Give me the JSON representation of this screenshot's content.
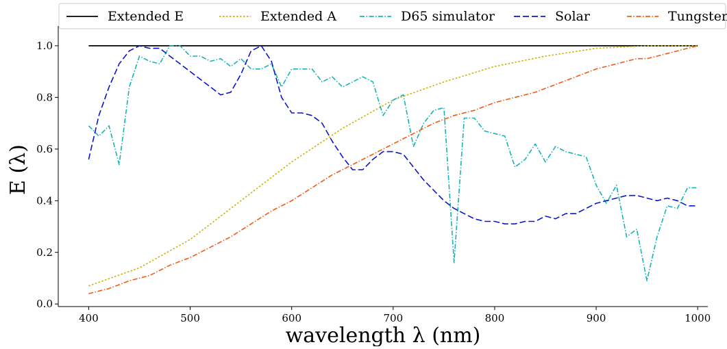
{
  "chart_data": {
    "type": "line",
    "title": "",
    "xlabel": "wavelength λ (nm)",
    "ylabel": "E (λ)",
    "xlim": [
      370,
      1010
    ],
    "ylim": [
      -0.01,
      1.05
    ],
    "x_ticks": [
      400,
      500,
      600,
      700,
      800,
      900,
      1000
    ],
    "y_ticks": [
      0.0,
      0.2,
      0.4,
      0.6,
      0.8,
      1.0
    ],
    "x_tick_labels": [
      "400",
      "500",
      "600",
      "700",
      "800",
      "900",
      "1000"
    ],
    "y_tick_labels": [
      "0.0",
      "0.2",
      "0.4",
      "0.6",
      "0.8",
      "1.0"
    ],
    "grid": false,
    "legend_position": "top",
    "series": [
      {
        "name": "Extended E",
        "color": "#000000",
        "dash": "solid",
        "x": [
          400,
          1000
        ],
        "y": [
          1.0,
          1.0
        ]
      },
      {
        "name": "Extended A",
        "color": "#c8b400",
        "dash": "dotted",
        "x": [
          400,
          450,
          500,
          550,
          600,
          650,
          700,
          750,
          800,
          850,
          900,
          950,
          1000
        ],
        "y": [
          0.07,
          0.14,
          0.25,
          0.4,
          0.55,
          0.68,
          0.79,
          0.86,
          0.92,
          0.96,
          0.99,
          1.0,
          1.0
        ]
      },
      {
        "name": "D65 simulator",
        "color": "#14b3b8",
        "dash": "dashdot",
        "x": [
          400,
          410,
          420,
          430,
          440,
          450,
          460,
          470,
          480,
          490,
          500,
          510,
          520,
          530,
          540,
          550,
          560,
          570,
          580,
          590,
          600,
          610,
          620,
          630,
          640,
          650,
          660,
          670,
          680,
          690,
          700,
          710,
          720,
          730,
          740,
          750,
          760,
          770,
          780,
          790,
          800,
          810,
          820,
          830,
          840,
          850,
          860,
          870,
          880,
          890,
          900,
          910,
          920,
          930,
          940,
          950,
          960,
          970,
          980,
          990,
          1000
        ],
        "y": [
          0.69,
          0.65,
          0.69,
          0.54,
          0.84,
          0.96,
          0.94,
          0.93,
          1.0,
          1.0,
          0.96,
          0.96,
          0.94,
          0.95,
          0.92,
          0.95,
          0.91,
          0.91,
          0.93,
          0.84,
          0.91,
          0.91,
          0.91,
          0.86,
          0.88,
          0.84,
          0.86,
          0.88,
          0.86,
          0.73,
          0.79,
          0.81,
          0.61,
          0.7,
          0.75,
          0.76,
          0.16,
          0.72,
          0.72,
          0.67,
          0.66,
          0.65,
          0.53,
          0.56,
          0.62,
          0.55,
          0.61,
          0.59,
          0.58,
          0.57,
          0.46,
          0.39,
          0.46,
          0.26,
          0.29,
          0.09,
          0.26,
          0.38,
          0.37,
          0.45,
          0.45
        ]
      },
      {
        "name": "Solar",
        "color": "#0a14c8",
        "dash": "dashed",
        "x": [
          400,
          410,
          420,
          430,
          440,
          450,
          460,
          470,
          480,
          490,
          500,
          510,
          520,
          530,
          540,
          550,
          560,
          570,
          580,
          590,
          600,
          610,
          620,
          630,
          640,
          650,
          660,
          670,
          680,
          690,
          700,
          710,
          720,
          730,
          740,
          750,
          760,
          770,
          780,
          790,
          800,
          810,
          820,
          830,
          840,
          850,
          860,
          870,
          880,
          890,
          900,
          910,
          920,
          930,
          940,
          950,
          960,
          970,
          980,
          990,
          1000
        ],
        "y": [
          0.56,
          0.73,
          0.84,
          0.93,
          0.98,
          1.0,
          0.99,
          0.99,
          0.96,
          0.93,
          0.9,
          0.87,
          0.84,
          0.81,
          0.82,
          0.89,
          0.98,
          1.0,
          0.94,
          0.8,
          0.74,
          0.74,
          0.73,
          0.7,
          0.63,
          0.57,
          0.52,
          0.52,
          0.56,
          0.59,
          0.59,
          0.58,
          0.53,
          0.48,
          0.44,
          0.4,
          0.37,
          0.35,
          0.33,
          0.32,
          0.32,
          0.31,
          0.31,
          0.32,
          0.32,
          0.34,
          0.33,
          0.35,
          0.35,
          0.37,
          0.39,
          0.4,
          0.41,
          0.42,
          0.42,
          0.41,
          0.4,
          0.41,
          0.4,
          0.38,
          0.38
        ]
      },
      {
        "name": "Tungsten",
        "color": "#f05a14",
        "dash": "dashdot",
        "x": [
          400,
          420,
          440,
          460,
          480,
          500,
          520,
          540,
          560,
          580,
          600,
          620,
          640,
          660,
          680,
          700,
          720,
          740,
          760,
          780,
          800,
          820,
          840,
          860,
          880,
          900,
          910,
          920,
          930,
          940,
          950,
          960,
          970,
          980,
          990,
          1000
        ],
        "y": [
          0.04,
          0.06,
          0.09,
          0.11,
          0.15,
          0.18,
          0.22,
          0.26,
          0.31,
          0.36,
          0.4,
          0.45,
          0.5,
          0.54,
          0.58,
          0.62,
          0.66,
          0.7,
          0.73,
          0.75,
          0.78,
          0.8,
          0.82,
          0.85,
          0.88,
          0.91,
          0.92,
          0.93,
          0.94,
          0.95,
          0.95,
          0.96,
          0.97,
          0.98,
          0.99,
          1.0
        ]
      }
    ]
  }
}
